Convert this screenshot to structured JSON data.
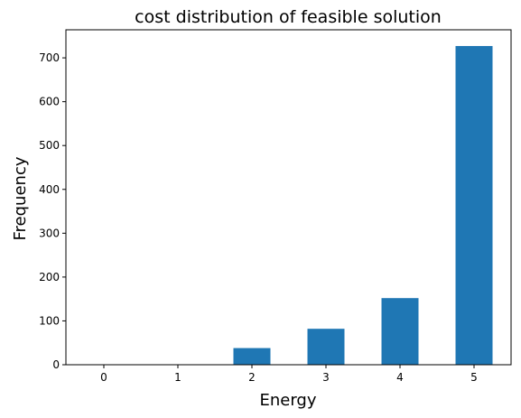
{
  "chart_data": {
    "type": "bar",
    "title": "cost distribution of feasible solution",
    "xlabel": "Energy",
    "ylabel": "Frequency",
    "categories": [
      "0",
      "1",
      "2",
      "3",
      "4",
      "5"
    ],
    "values": [
      1,
      0,
      38,
      82,
      152,
      727
    ],
    "ylim": [
      0,
      764
    ],
    "yticks": [
      0,
      100,
      200,
      300,
      400,
      500,
      600,
      700
    ],
    "bar_color": "#1f77b4",
    "grid": false
  }
}
